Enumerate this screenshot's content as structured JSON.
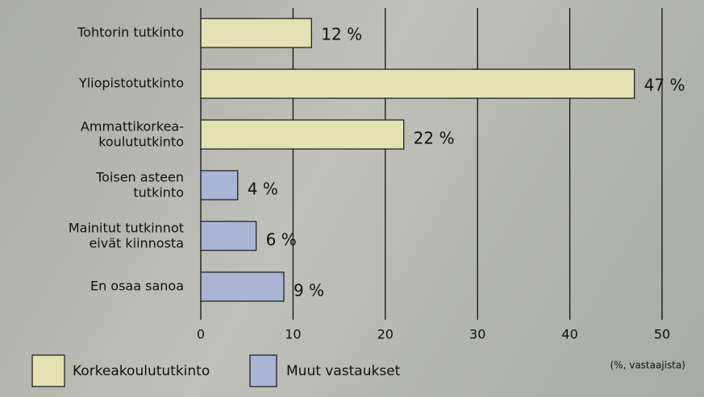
{
  "chart_data": {
    "type": "bar",
    "orientation": "horizontal",
    "categories": [
      "Tohtorin tutkinto",
      "Yliopistotutkinto",
      "Ammattikorkea-\nkoulututkinto",
      "Toisen asteen\ntutkinto",
      "Mainitut tutkinnot\neivät kiinnosta",
      "En osaa sanoa"
    ],
    "series": [
      {
        "name": "Korkeakoulututkinto",
        "color": "#e4e2b2",
        "values": [
          12,
          47,
          22,
          null,
          null,
          null
        ],
        "value_labels": [
          "12 %",
          "47 %",
          "22 %",
          null,
          null,
          null
        ]
      },
      {
        "name": "Muut vastaukset",
        "color": "#aab5d6",
        "values": [
          null,
          null,
          null,
          4,
          6,
          9
        ],
        "value_labels": [
          null,
          null,
          null,
          "4 %",
          "6 %",
          "9 %"
        ]
      }
    ],
    "xlim": [
      0,
      50
    ],
    "xticks": [
      0,
      10,
      20,
      30,
      40,
      50
    ],
    "grid": true,
    "annotation": "(%, vastaajista)",
    "legend": "bottom-left"
  }
}
